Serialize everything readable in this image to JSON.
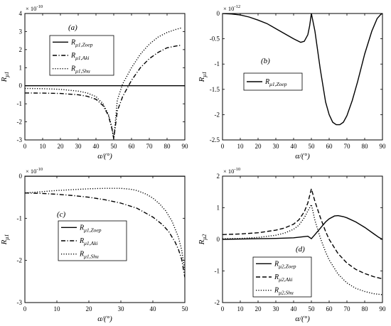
{
  "chart_data": [
    {
      "type": "line",
      "panel_label": "(a)",
      "xlabel": "α/(°)",
      "ylabel": "R",
      "ylabel_sub": "μ1",
      "exponent": "× 10",
      "exponent_power": "-10",
      "xlim": [
        0,
        90
      ],
      "ylim": [
        -3,
        4
      ],
      "xticks": [
        0,
        10,
        20,
        30,
        40,
        50,
        60,
        70,
        80,
        90
      ],
      "yticks": [
        -3,
        -2,
        -1,
        0,
        1,
        2,
        3,
        4
      ],
      "xtick_labels": [
        "0",
        "10",
        "20",
        "30",
        "40",
        "50",
        "60",
        "70",
        "80",
        "90"
      ],
      "ytick_labels": [
        "-3",
        "-2",
        "-1",
        "0",
        "1",
        "2",
        "3",
        "4"
      ],
      "grid": false,
      "legend_position": "top-left",
      "series": [
        {
          "name": "R",
          "name_sub": "μ1,Zoep",
          "style": "solid",
          "x": [
            0,
            90
          ],
          "y": [
            0,
            0
          ]
        },
        {
          "name": "R",
          "name_sub": "μ1,Aki",
          "style": "dashdot",
          "x": [
            0,
            10,
            20,
            30,
            35,
            40,
            44,
            47,
            49,
            50,
            52,
            55,
            60,
            65,
            70,
            75,
            80,
            85,
            88
          ],
          "y": [
            -0.4,
            -0.41,
            -0.43,
            -0.5,
            -0.58,
            -0.75,
            -1.1,
            -1.65,
            -2.4,
            -2.95,
            -1.4,
            -0.6,
            0.3,
            1.0,
            1.5,
            1.85,
            2.1,
            2.2,
            2.25
          ]
        },
        {
          "name": "R",
          "name_sub": "μ1,Shu",
          "style": "dotted",
          "x": [
            0,
            10,
            20,
            30,
            35,
            40,
            44,
            47,
            49,
            50,
            52,
            55,
            60,
            65,
            70,
            75,
            80,
            85,
            88
          ],
          "y": [
            -0.15,
            -0.16,
            -0.2,
            -0.3,
            -0.4,
            -0.6,
            -1.0,
            -1.6,
            -2.3,
            -2.95,
            -0.8,
            0.1,
            1.0,
            1.75,
            2.3,
            2.7,
            2.95,
            3.12,
            3.2
          ]
        }
      ]
    },
    {
      "type": "line",
      "panel_label": "(b)",
      "xlabel": "α/(°)",
      "ylabel": "R",
      "ylabel_sub": "μ1",
      "exponent": "× 10",
      "exponent_power": "-12",
      "xlim": [
        0,
        90
      ],
      "ylim": [
        -2.5,
        0
      ],
      "xticks": [
        0,
        10,
        20,
        30,
        40,
        50,
        60,
        70,
        80,
        90
      ],
      "yticks": [
        -2.5,
        -2,
        -1.5,
        -1,
        -0.5,
        0
      ],
      "xtick_labels": [
        "0",
        "10",
        "20",
        "30",
        "40",
        "50",
        "60",
        "70",
        "80",
        "90"
      ],
      "ytick_labels": [
        "-2.5",
        "-2",
        "-1.5",
        "-1",
        "-0.5",
        "0"
      ],
      "grid": false,
      "legend_position": "center-left",
      "series": [
        {
          "name": "R",
          "name_sub": "μ1,Zoep",
          "style": "solid",
          "x": [
            0,
            5,
            10,
            15,
            20,
            25,
            30,
            35,
            40,
            44,
            46,
            48,
            49,
            50,
            52,
            55,
            58,
            60,
            62,
            64,
            66,
            68,
            70,
            73,
            76,
            80,
            84,
            87,
            89,
            90
          ],
          "y": [
            0,
            -0.01,
            -0.03,
            -0.07,
            -0.13,
            -0.2,
            -0.3,
            -0.4,
            -0.5,
            -0.57,
            -0.55,
            -0.42,
            -0.25,
            0,
            -0.35,
            -1.1,
            -1.75,
            -2.0,
            -2.15,
            -2.2,
            -2.2,
            -2.15,
            -2.02,
            -1.72,
            -1.35,
            -0.8,
            -0.35,
            -0.1,
            -0.02,
            0
          ]
        }
      ]
    },
    {
      "type": "line",
      "panel_label": "(c)",
      "xlabel": "α/(°)",
      "ylabel": "R",
      "ylabel_sub": "μ1",
      "exponent": "× 10",
      "exponent_power": "-10",
      "xlim": [
        0,
        50
      ],
      "ylim": [
        -3,
        0
      ],
      "xticks": [
        0,
        10,
        20,
        30,
        40,
        50
      ],
      "yticks": [
        -3,
        -2,
        -1,
        0
      ],
      "xtick_labels": [
        "0",
        "10",
        "20",
        "30",
        "40",
        "50"
      ],
      "ytick_labels": [
        "-3",
        "-2",
        "-1",
        "0"
      ],
      "grid": false,
      "legend_position": "center",
      "series": [
        {
          "name": "R",
          "name_sub": "μ1,Zoep",
          "style": "solid",
          "x": [
            0,
            50
          ],
          "y": [
            0,
            0
          ]
        },
        {
          "name": "R",
          "name_sub": "μ1,Aki",
          "style": "dashdot",
          "x": [
            0,
            5,
            10,
            15,
            20,
            25,
            30,
            35,
            40,
            43,
            45,
            47,
            48,
            49,
            50
          ],
          "y": [
            -0.4,
            -0.41,
            -0.43,
            -0.46,
            -0.5,
            -0.56,
            -0.64,
            -0.76,
            -0.97,
            -1.15,
            -1.32,
            -1.57,
            -1.74,
            -1.97,
            -2.4
          ]
        },
        {
          "name": "R",
          "name_sub": "μ1,Shu",
          "style": "dotted",
          "x": [
            0,
            5,
            10,
            15,
            20,
            25,
            30,
            33,
            35,
            38,
            40,
            42,
            44,
            46,
            48,
            49,
            50
          ],
          "y": [
            -0.4,
            -0.37,
            -0.34,
            -0.32,
            -0.3,
            -0.29,
            -0.29,
            -0.31,
            -0.34,
            -0.43,
            -0.52,
            -0.65,
            -0.82,
            -1.07,
            -1.45,
            -1.75,
            -2.25
          ]
        }
      ]
    },
    {
      "type": "line",
      "panel_label": "(d)",
      "xlabel": "α/(°)",
      "ylabel": "R",
      "ylabel_sub": "μ2",
      "exponent": "× 10",
      "exponent_power": "-10",
      "xlim": [
        0,
        90
      ],
      "ylim": [
        -2,
        2
      ],
      "xticks": [
        0,
        10,
        20,
        30,
        40,
        50,
        60,
        70,
        80,
        90
      ],
      "yticks": [
        -2,
        -1,
        0,
        1,
        2
      ],
      "xtick_labels": [
        "0",
        "10",
        "20",
        "30",
        "40",
        "50",
        "60",
        "70",
        "80",
        "90"
      ],
      "ytick_labels": [
        "-2",
        "-1",
        "0",
        "1",
        "2"
      ],
      "grid": false,
      "legend_position": "bottom-center",
      "series": [
        {
          "name": "R",
          "name_sub": "μ2,Zoep",
          "style": "solid",
          "x": [
            0,
            10,
            20,
            30,
            40,
            45,
            48,
            50,
            52,
            55,
            58,
            60,
            63,
            65,
            68,
            70,
            75,
            80,
            85,
            88,
            90
          ],
          "y": [
            0,
            0.01,
            0.02,
            0.03,
            0.05,
            0.08,
            0.1,
            0.02,
            0.15,
            0.35,
            0.55,
            0.65,
            0.74,
            0.75,
            0.72,
            0.68,
            0.55,
            0.38,
            0.18,
            0.06,
            0
          ]
        },
        {
          "name": "R",
          "name_sub": "μ2,Aki",
          "style": "dashed",
          "x": [
            0,
            10,
            20,
            30,
            35,
            40,
            43,
            46,
            48,
            50,
            52,
            55,
            58,
            60,
            65,
            70,
            75,
            80,
            85,
            90
          ],
          "y": [
            0.15,
            0.17,
            0.21,
            0.29,
            0.36,
            0.48,
            0.62,
            0.87,
            1.15,
            1.6,
            1.2,
            0.7,
            0.25,
            0.0,
            -0.45,
            -0.75,
            -0.95,
            -1.08,
            -1.18,
            -1.25
          ]
        },
        {
          "name": "R",
          "name_sub": "μ2,Shu",
          "style": "dotted",
          "x": [
            0,
            10,
            20,
            30,
            35,
            40,
            43,
            46,
            48,
            50,
            52,
            55,
            58,
            60,
            65,
            70,
            75,
            80,
            85,
            90
          ],
          "y": [
            0.02,
            0.03,
            0.06,
            0.13,
            0.2,
            0.32,
            0.45,
            0.68,
            0.9,
            1.1,
            0.6,
            0.05,
            -0.4,
            -0.65,
            -1.1,
            -1.38,
            -1.55,
            -1.65,
            -1.72,
            -1.75
          ]
        }
      ]
    }
  ]
}
